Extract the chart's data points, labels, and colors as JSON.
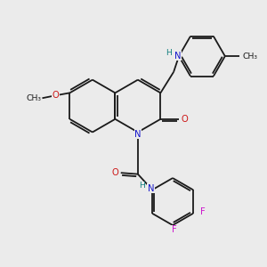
{
  "bg": "#ebebeb",
  "bc": "#1a1a1a",
  "nc": "#1414cc",
  "oc": "#cc1414",
  "fc": "#cc14cc",
  "hc": "#148080",
  "lw": 1.3,
  "fs": 7.2,
  "xlim": [
    0,
    10
  ],
  "ylim": [
    0,
    10
  ],
  "figsize": [
    3.0,
    3.0
  ],
  "dpi": 100
}
